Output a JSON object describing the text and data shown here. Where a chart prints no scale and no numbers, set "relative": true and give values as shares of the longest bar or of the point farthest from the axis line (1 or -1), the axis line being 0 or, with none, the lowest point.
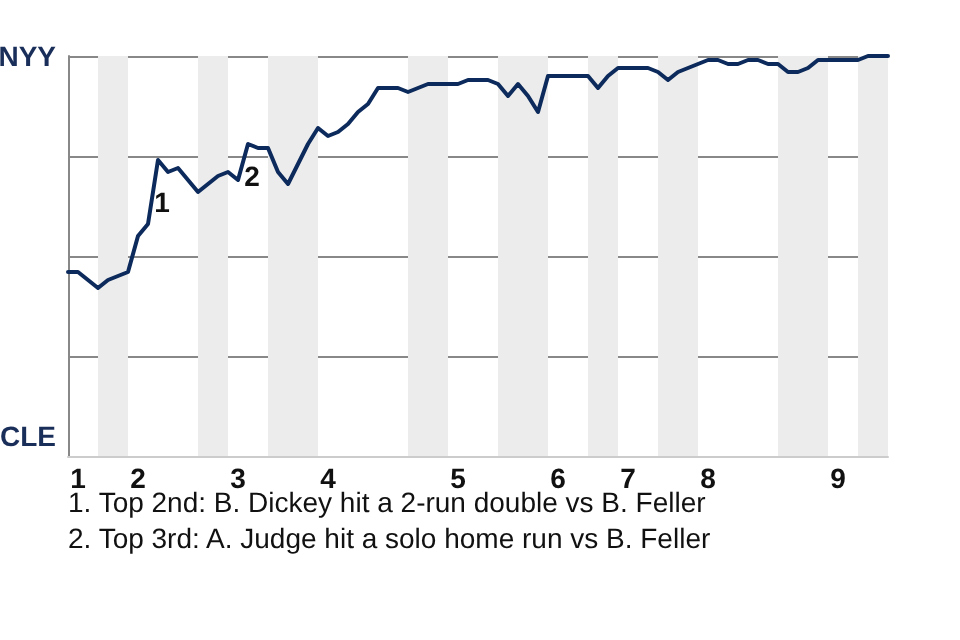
{
  "chart_data": {
    "type": "line",
    "relative": true,
    "categories": [
      null,
      "1",
      null,
      null,
      null,
      null,
      null,
      "2",
      null,
      null,
      null,
      null,
      null,
      null,
      null,
      null,
      null,
      "3",
      null,
      null,
      null,
      null,
      null,
      null,
      null,
      null,
      "4",
      null,
      null,
      null,
      null,
      null,
      null,
      null,
      null,
      null,
      null,
      null,
      null,
      "5",
      null,
      null,
      null,
      null,
      null,
      null,
      null,
      null,
      null,
      "6",
      null,
      null,
      null,
      null,
      null,
      null,
      "7",
      null,
      null,
      null,
      null,
      null,
      null,
      null,
      "8",
      null,
      null,
      null,
      null,
      null,
      null,
      null,
      null,
      null,
      null,
      null,
      null,
      "9",
      null,
      null,
      null,
      null,
      null
    ],
    "series": [
      {
        "color": "#0c2a5b",
        "values": [
          0.46,
          0.46,
          0.44,
          0.42,
          0.44,
          0.45,
          0.46,
          0.55,
          0.58,
          0.74,
          0.71,
          0.72,
          0.69,
          0.66,
          0.68,
          0.7,
          0.71,
          0.69,
          0.78,
          0.77,
          0.77,
          0.71,
          0.68,
          0.73,
          0.78,
          0.82,
          0.8,
          0.81,
          0.83,
          0.86,
          0.88,
          0.92,
          0.92,
          0.92,
          0.91,
          0.92,
          0.93,
          0.93,
          0.93,
          0.93,
          0.94,
          0.94,
          0.94,
          0.93,
          0.9,
          0.93,
          0.9,
          0.86,
          0.95,
          0.95,
          0.95,
          0.95,
          0.95,
          0.92,
          0.95,
          0.97,
          0.97,
          0.97,
          0.97,
          0.96,
          0.94,
          0.96,
          0.97,
          0.98,
          0.99,
          0.99,
          0.98,
          0.98,
          0.99,
          0.99,
          0.98,
          0.98,
          0.96,
          0.96,
          0.97,
          0.99,
          0.99,
          0.99,
          0.99,
          0.99,
          1,
          1,
          1
        ]
      }
    ],
    "grid": "y",
    "marker": "none",
    "line_style": "solid",
    "annotations": [
      "NYY",
      "CLE",
      "1",
      "2",
      "1. Top 2nd: B. Dickey hit a 2-run double vs B. Feller",
      "2. Top 3rd: A. Judge hit a solo home run vs B. Feller"
    ]
  }
}
